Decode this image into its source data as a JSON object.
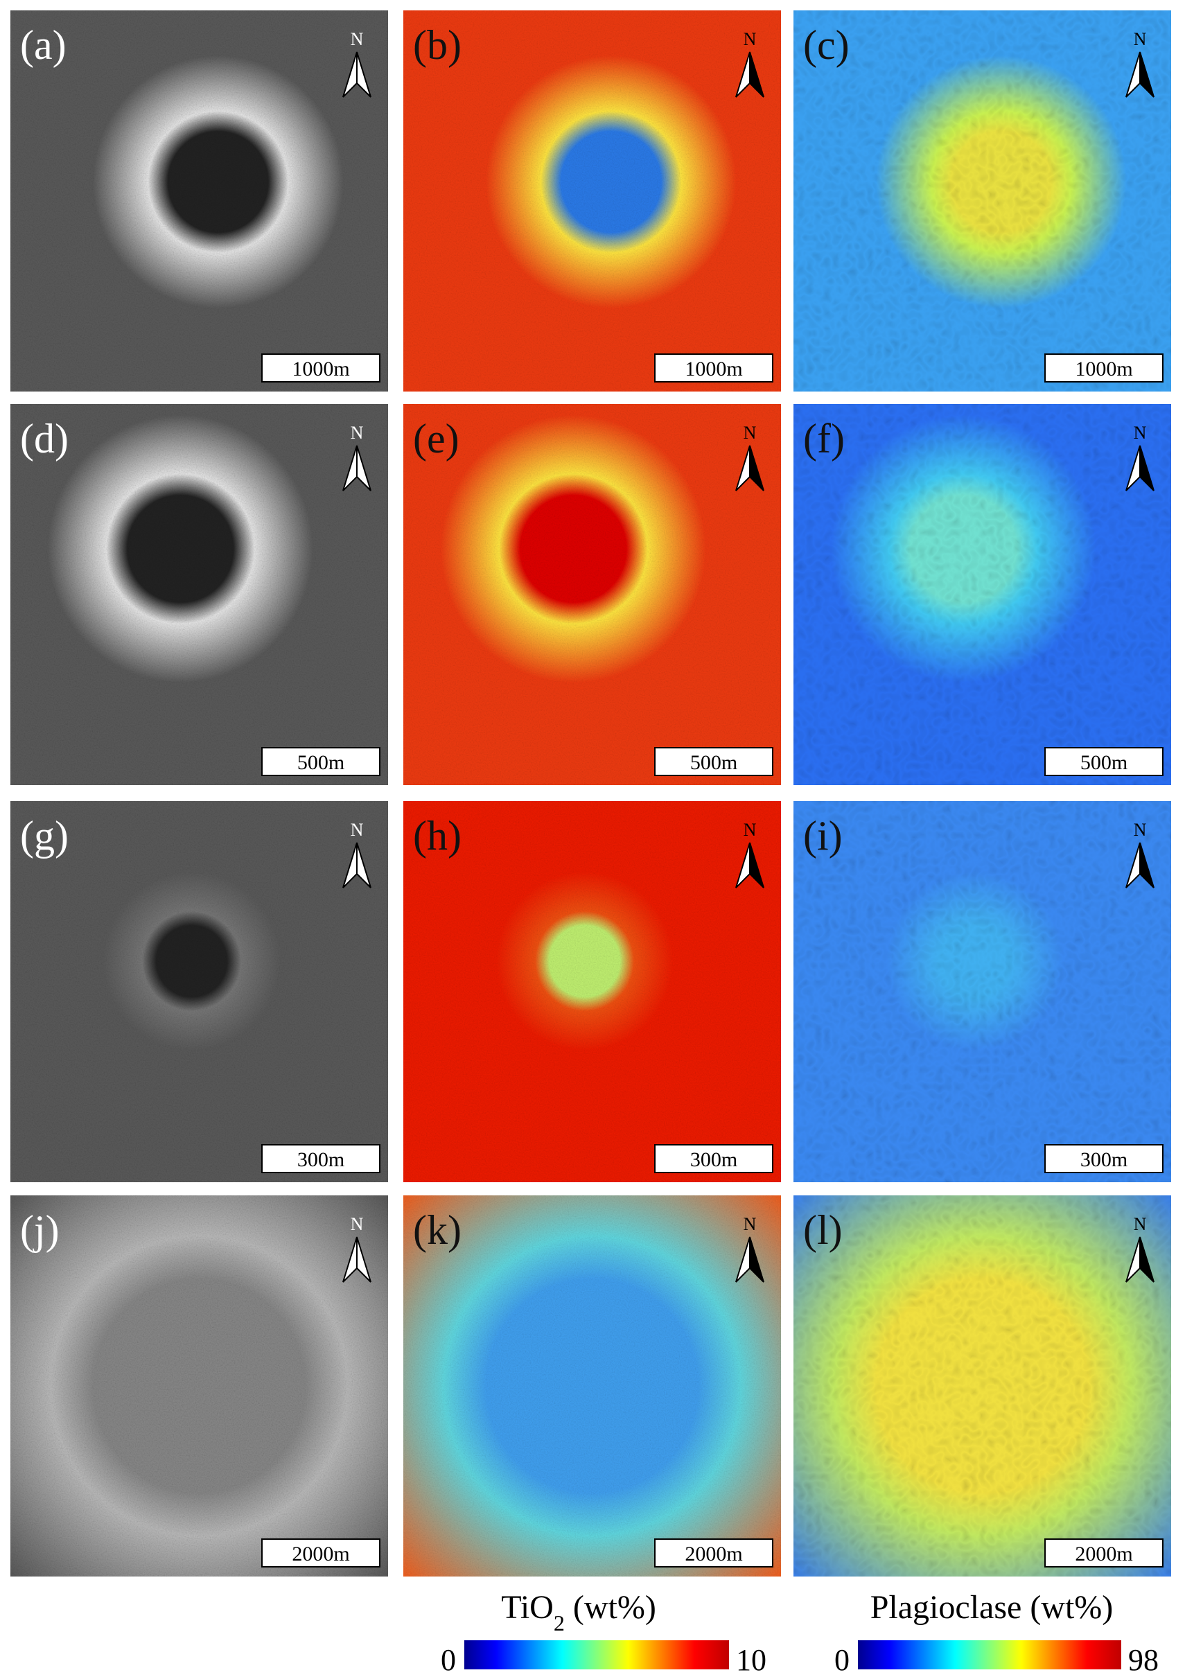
{
  "north_label": "N",
  "rows": [
    [
      {
        "label": "(a)",
        "scale": "1000m"
      },
      {
        "label": "(b)",
        "scale": "1000m"
      },
      {
        "label": "(c)",
        "scale": "1000m"
      }
    ],
    [
      {
        "label": "(d)",
        "scale": "500m"
      },
      {
        "label": "(e)",
        "scale": "500m"
      },
      {
        "label": "(f)",
        "scale": "500m"
      }
    ],
    [
      {
        "label": "(g)",
        "scale": "300m"
      },
      {
        "label": "(h)",
        "scale": "300m"
      },
      {
        "label": "(i)",
        "scale": "300m"
      }
    ],
    [
      {
        "label": "(j)",
        "scale": "2000m"
      },
      {
        "label": "(k)",
        "scale": "2000m"
      },
      {
        "label": "(l)",
        "scale": "2000m"
      }
    ]
  ],
  "colorbars": [
    {
      "title_parts": [
        "TiO",
        "2",
        " (wt%)"
      ],
      "min": 0,
      "max": 10
    },
    {
      "title_parts": [
        "Plagioclase (wt%)"
      ],
      "min": 0,
      "max": 98
    }
  ]
}
